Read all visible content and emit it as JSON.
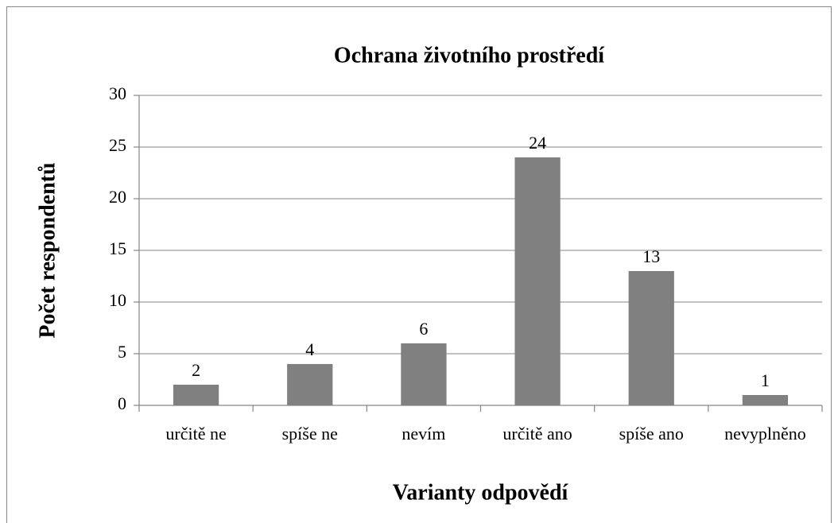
{
  "chart_data": {
    "type": "bar",
    "title": "Ochrana životního prostředí",
    "x_label": "Varianty odpovědí",
    "y_label": "Počet respondentů",
    "categories": [
      "určitě ne",
      "spíše ne",
      "nevím",
      "určitě ano",
      "spíše ano",
      "nevyplněno"
    ],
    "values": [
      2,
      4,
      6,
      24,
      13,
      1
    ],
    "color": "#808080",
    "ylim": [
      0,
      30
    ],
    "yticks": [
      0,
      5,
      10,
      15,
      20,
      25,
      30
    ],
    "grid": true
  }
}
